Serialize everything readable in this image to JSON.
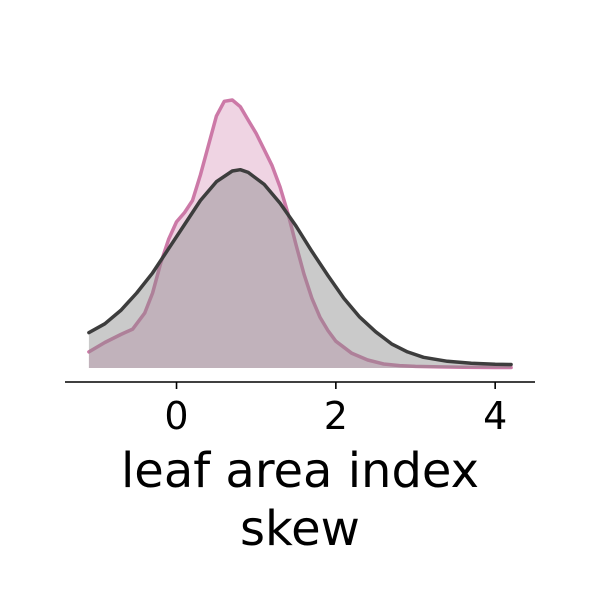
{
  "chart_data": {
    "type": "area",
    "title": "",
    "xlabel_lines": [
      "leaf area index",
      "skew"
    ],
    "ylabel": "",
    "xlim": [
      -1.4,
      4.5
    ],
    "ylim": [
      0,
      1.0
    ],
    "x_ticks": [
      0,
      2,
      4
    ],
    "x_tick_labels": [
      "0",
      "2",
      "4"
    ],
    "grid": false,
    "legend": "none",
    "series": [
      {
        "color": "#cc79a7",
        "fill": "#cc79a7",
        "fill_opacity": 0.32,
        "x": [
          -1.1,
          -0.9,
          -0.7,
          -0.55,
          -0.4,
          -0.3,
          -0.2,
          -0.1,
          0.0,
          0.1,
          0.2,
          0.3,
          0.4,
          0.5,
          0.6,
          0.7,
          0.8,
          0.9,
          1.0,
          1.1,
          1.2,
          1.3,
          1.4,
          1.5,
          1.6,
          1.7,
          1.8,
          1.9,
          2.0,
          2.2,
          2.4,
          2.6,
          2.8,
          3.0,
          3.3,
          3.6,
          4.0,
          4.2
        ],
        "y": [
          0.06,
          0.095,
          0.125,
          0.145,
          0.205,
          0.28,
          0.39,
          0.48,
          0.545,
          0.58,
          0.625,
          0.72,
          0.83,
          0.94,
          0.995,
          1.0,
          0.975,
          0.925,
          0.875,
          0.815,
          0.755,
          0.675,
          0.575,
          0.46,
          0.35,
          0.26,
          0.19,
          0.14,
          0.1,
          0.055,
          0.03,
          0.015,
          0.009,
          0.006,
          0.004,
          0.003,
          0.002,
          0.002
        ]
      },
      {
        "color": "#3d3d3d",
        "fill": "#8a8a8a",
        "fill_opacity": 0.45,
        "x": [
          -1.1,
          -0.9,
          -0.7,
          -0.5,
          -0.3,
          -0.1,
          0.1,
          0.3,
          0.5,
          0.7,
          0.8,
          0.9,
          1.1,
          1.3,
          1.5,
          1.7,
          1.9,
          2.1,
          2.3,
          2.5,
          2.7,
          2.9,
          3.1,
          3.4,
          3.7,
          4.0,
          4.2
        ],
        "y": [
          0.132,
          0.165,
          0.215,
          0.28,
          0.355,
          0.445,
          0.535,
          0.625,
          0.695,
          0.735,
          0.74,
          0.73,
          0.685,
          0.615,
          0.53,
          0.435,
          0.345,
          0.26,
          0.19,
          0.135,
          0.09,
          0.06,
          0.04,
          0.025,
          0.018,
          0.014,
          0.013
        ]
      }
    ]
  }
}
